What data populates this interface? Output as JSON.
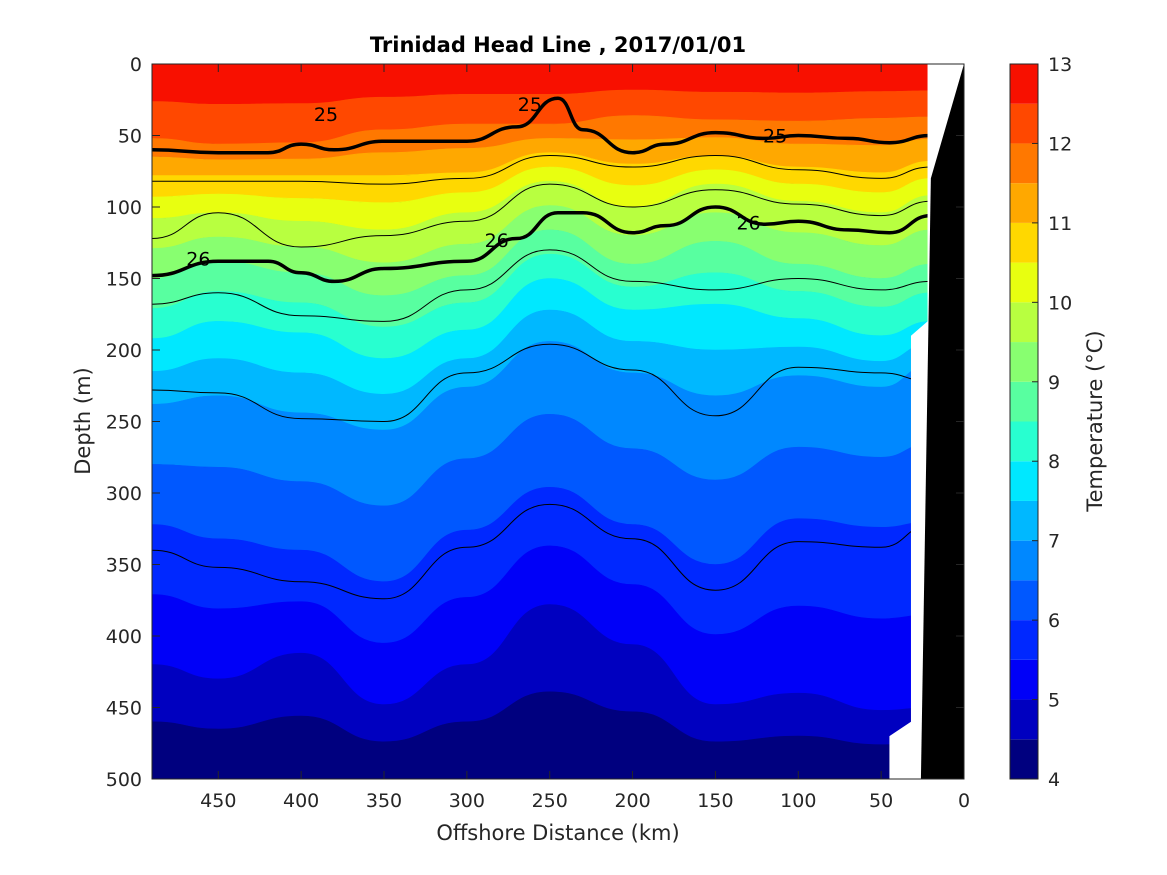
{
  "chart_data": {
    "type": "heatmap",
    "subtype": "filled-contour-section",
    "title": "Trinidad Head Line , 2017/01/01",
    "xlabel": "Offshore Distance (km)",
    "ylabel": "Depth (m)",
    "colorbar_label": "Temperature (°C)",
    "xlim": [
      490,
      0
    ],
    "ylim": [
      0,
      500
    ],
    "x_reversed": true,
    "y_reversed": true,
    "x_ticks": [
      450,
      400,
      350,
      300,
      250,
      200,
      150,
      100,
      50,
      0
    ],
    "y_ticks": [
      0,
      50,
      100,
      150,
      200,
      250,
      300,
      350,
      400,
      450,
      500
    ],
    "clim": [
      4,
      13
    ],
    "colorbar_ticks": [
      4,
      5,
      6,
      7,
      8,
      9,
      10,
      11,
      12,
      13
    ],
    "temperature_levels": [
      4,
      4.5,
      5,
      5.5,
      6,
      6.5,
      7,
      7.5,
      8,
      8.5,
      9,
      9.5,
      10,
      10.5,
      11,
      11.5,
      12,
      12.5,
      13
    ],
    "level_colors": [
      "#00007f",
      "#0000c0",
      "#0000f8",
      "#0028ff",
      "#0058ff",
      "#0088ff",
      "#00b8ff",
      "#00e8ff",
      "#28ffd0",
      "#58ffa0",
      "#88ff70",
      "#b8ff40",
      "#e8ff10",
      "#ffd800",
      "#ffa800",
      "#ff7800",
      "#ff4800",
      "#f81000",
      "#b00000"
    ],
    "isotherm_depths": {
      "x": [
        490,
        450,
        400,
        350,
        300,
        250,
        200,
        150,
        100,
        50,
        20
      ],
      "T_12": [
        52,
        56,
        55,
        46,
        42,
        42,
        36,
        39,
        40,
        38,
        37
      ],
      "T_11": [
        78,
        78,
        78,
        78,
        76,
        62,
        70,
        64,
        72,
        76,
        68
      ],
      "T_10": [
        108,
        104,
        110,
        116,
        104,
        82,
        100,
        84,
        96,
        104,
        92
      ],
      "T_9": [
        150,
        138,
        146,
        162,
        148,
        116,
        140,
        124,
        140,
        150,
        140
      ],
      "T_8": [
        192,
        180,
        188,
        206,
        186,
        150,
        172,
        168,
        178,
        190,
        180
      ],
      "T_7": [
        238,
        232,
        244,
        256,
        226,
        194,
        216,
        232,
        218,
        226,
        210
      ],
      "T_6": [
        322,
        332,
        340,
        362,
        326,
        296,
        322,
        350,
        318,
        324,
        320
      ],
      "T_5": [
        420,
        430,
        412,
        448,
        420,
        378,
        406,
        448,
        440,
        452,
        450
      ]
    },
    "sigma_contours": {
      "x": [
        490,
        450,
        420,
        400,
        380,
        350,
        300,
        270,
        245,
        230,
        200,
        180,
        150,
        120,
        100,
        70,
        45,
        20
      ],
      "sigma_25": [
        60,
        62,
        62,
        56,
        60,
        54,
        54,
        44,
        24,
        46,
        62,
        56,
        48,
        52,
        50,
        52,
        55,
        50
      ],
      "sigma_26": [
        148,
        138,
        138,
        146,
        152,
        143,
        138,
        122,
        104,
        104,
        118,
        113,
        100,
        112,
        110,
        116,
        118,
        106
      ]
    },
    "thin_contours": {
      "x": [
        490,
        450,
        400,
        350,
        300,
        250,
        200,
        150,
        100,
        50,
        20
      ],
      "c1": [
        82,
        82,
        82,
        84,
        80,
        64,
        72,
        64,
        74,
        80,
        72
      ],
      "c2": [
        122,
        104,
        128,
        120,
        110,
        84,
        100,
        88,
        98,
        106,
        96
      ],
      "c3": [
        168,
        160,
        176,
        180,
        158,
        130,
        152,
        158,
        150,
        158,
        152
      ],
      "c4": [
        228,
        230,
        248,
        250,
        216,
        196,
        214,
        246,
        212,
        216,
        222
      ],
      "c5": [
        340,
        352,
        362,
        374,
        338,
        308,
        332,
        368,
        334,
        338,
        322
      ]
    },
    "contour_labels": [
      {
        "text": "25",
        "x": 385,
        "y": 35
      },
      {
        "text": "25",
        "x": 262,
        "y": 28
      },
      {
        "text": "25",
        "x": 114,
        "y": 50
      },
      {
        "text": "26",
        "x": 462,
        "y": 136
      },
      {
        "text": "26",
        "x": 282,
        "y": 123
      },
      {
        "text": "26",
        "x": 130,
        "y": 111
      }
    ],
    "land_mask_color": "#000000",
    "no_data_color": "#ffffff"
  }
}
